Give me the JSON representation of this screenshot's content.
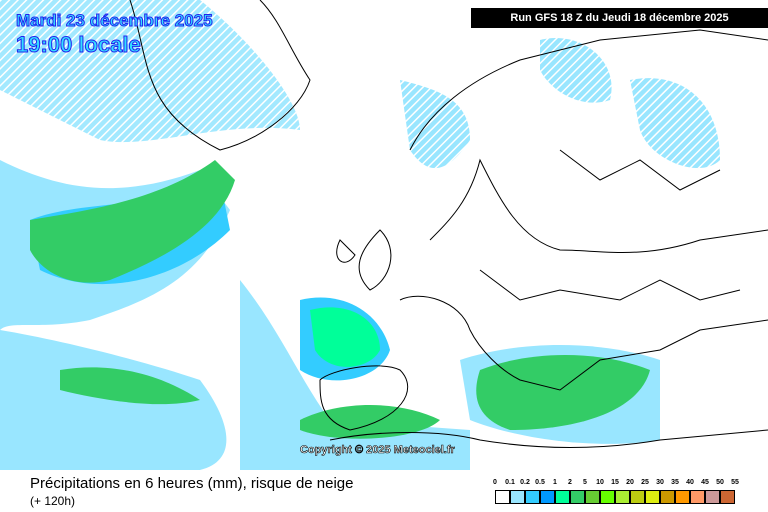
{
  "header": {
    "date": "Mardi 23 décembre 2025",
    "time": "19:00 locale",
    "run": "Run GFS 18 Z du Jeudi 18 décembre 2025"
  },
  "map": {
    "copyright": "Copyright © 2025 Meteociel.fr"
  },
  "footer": {
    "title": "Précipitations en 6 heures (mm), risque de neige",
    "lead": "(+ 120h)"
  },
  "legend": {
    "labels": [
      "0",
      "0.1",
      "0.2",
      "0.5",
      "1",
      "2",
      "5",
      "10",
      "15",
      "20",
      "25",
      "30",
      "35",
      "40",
      "45",
      "50",
      "55"
    ],
    "colors": [
      "#ffffff",
      "#99e6ff",
      "#33ccff",
      "#0099ff",
      "#00ff99",
      "#33cc66",
      "#66cc33",
      "#66ff00",
      "#aaee33",
      "#bbcc11",
      "#dded11",
      "#cc9900",
      "#ff9900",
      "#ff9966",
      "#cc9999",
      "#cc6633",
      "#cc3333"
    ]
  }
}
